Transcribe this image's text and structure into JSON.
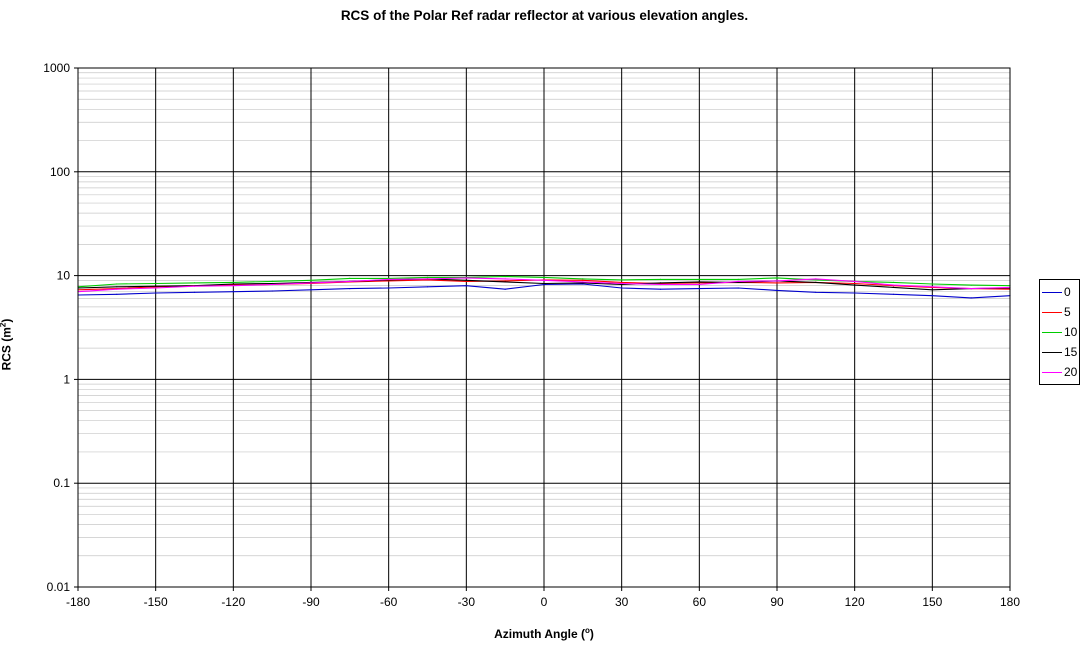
{
  "chart_data": {
    "type": "line",
    "title": "RCS of the Polar Ref radar reflector at various elevation angles.",
    "xlabel": "Azimuth Angle (°)",
    "ylabel": "RCS (m²)",
    "xlim": [
      -180,
      180
    ],
    "ylim": [
      0.01,
      1000
    ],
    "yscale": "log",
    "x_ticks": [
      "-180",
      "-150",
      "-120",
      "-90",
      "-60",
      "-30",
      "0",
      "30",
      "60",
      "90",
      "120",
      "150",
      "180"
    ],
    "y_ticks": [
      "0.01",
      "0.1",
      "1",
      "10",
      "100",
      "1000"
    ],
    "grid": true,
    "legend_position": "right",
    "x": [
      -180,
      -165,
      -150,
      -135,
      -120,
      -105,
      -90,
      -75,
      -60,
      -45,
      -30,
      -15,
      0,
      15,
      30,
      45,
      60,
      75,
      90,
      105,
      120,
      135,
      150,
      165,
      180
    ],
    "series": [
      {
        "name": "0",
        "color": "#0000cc",
        "values": [
          6.5,
          6.6,
          6.8,
          6.9,
          7.0,
          7.1,
          7.3,
          7.5,
          7.6,
          7.8,
          8.0,
          7.4,
          8.2,
          8.3,
          7.6,
          7.4,
          7.5,
          7.6,
          7.2,
          6.9,
          6.8,
          6.6,
          6.4,
          6.1,
          6.4
        ]
      },
      {
        "name": "5",
        "color": "#ff0000",
        "values": [
          7.3,
          7.5,
          7.8,
          8.0,
          8.1,
          8.2,
          8.4,
          8.7,
          8.9,
          9.1,
          8.8,
          8.9,
          9.1,
          9.0,
          8.6,
          8.4,
          8.5,
          8.6,
          8.5,
          8.6,
          8.4,
          8.0,
          7.7,
          7.5,
          7.4
        ]
      },
      {
        "name": "10",
        "color": "#00cc00",
        "values": [
          7.8,
          8.3,
          8.4,
          8.5,
          8.6,
          8.8,
          9.0,
          9.4,
          9.4,
          9.6,
          9.6,
          9.8,
          9.6,
          9.3,
          9.1,
          9.2,
          9.2,
          9.2,
          9.5,
          9.1,
          8.8,
          8.6,
          8.3,
          8.1,
          8.0
        ]
      },
      {
        "name": "15",
        "color": "#000000",
        "values": [
          7.6,
          7.8,
          7.9,
          8.0,
          8.3,
          8.4,
          8.6,
          8.8,
          9.1,
          9.3,
          9.0,
          8.7,
          8.4,
          8.5,
          8.2,
          8.5,
          8.7,
          8.6,
          8.9,
          8.6,
          8.1,
          7.7,
          7.3,
          7.5,
          7.6
        ]
      },
      {
        "name": "20",
        "color": "#ff00ff",
        "values": [
          7.0,
          7.4,
          7.6,
          7.9,
          8.0,
          8.2,
          8.5,
          8.8,
          9.2,
          9.3,
          9.5,
          9.3,
          9.0,
          8.7,
          8.4,
          8.2,
          8.2,
          8.8,
          8.9,
          9.3,
          8.8,
          8.1,
          7.8,
          7.5,
          7.7
        ]
      }
    ]
  }
}
